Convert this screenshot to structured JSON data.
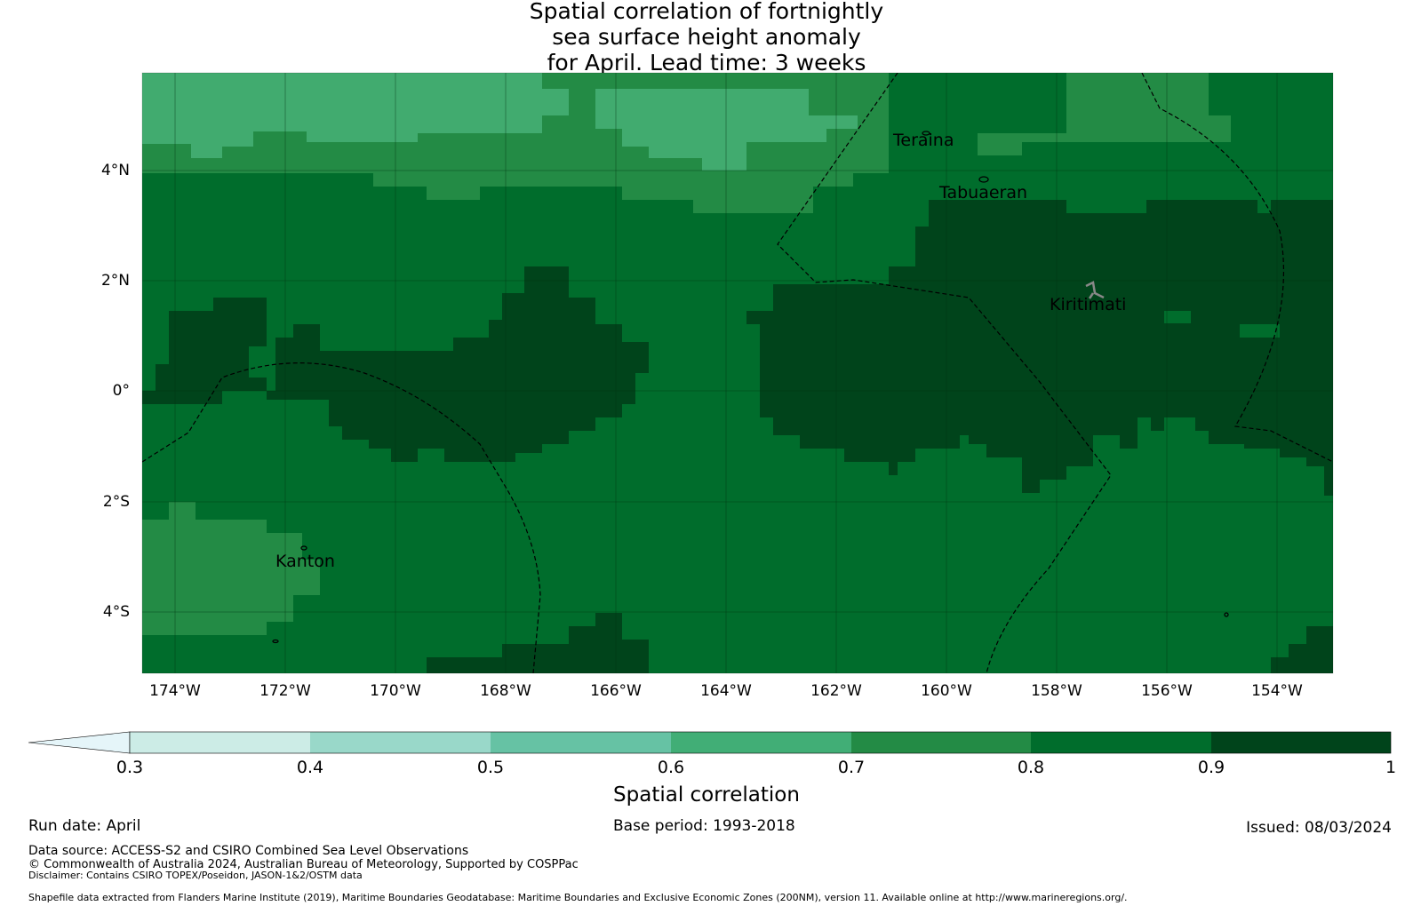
{
  "title_lines": [
    "Spatial correlation of fortnightly",
    "sea surface height anomaly",
    "for April. Lead time: 3 weeks"
  ],
  "map": {
    "lon_range": [
      -174.6,
      -153.0
    ],
    "lat_range": [
      -5.1,
      5.8
    ],
    "lon_ticks": [
      "174°W",
      "172°W",
      "170°W",
      "168°W",
      "166°W",
      "164°W",
      "162°W",
      "160°W",
      "158°W",
      "156°W",
      "154°W"
    ],
    "lat_ticks": [
      "4°N",
      "2°N",
      "0°",
      "2°S",
      "4°S"
    ],
    "places": [
      {
        "name": "Teraina",
        "lon": -160.4
      },
      {
        "name": "Tabuaeran",
        "lon": -159.3
      },
      {
        "name": "Kiritimati",
        "lon": -157.4
      },
      {
        "name": "Kanton",
        "lon": -171.7
      }
    ],
    "colors": {
      "0.5-0.6": "#5cbf9b",
      "0.6-0.7": "#41ab6f",
      "0.7-0.8": "#238b45",
      "0.8-0.9": "#006d2c",
      "0.9-1": "#00441b"
    }
  },
  "colorbar": {
    "ticks": [
      "0.3",
      "0.4",
      "0.5",
      "0.6",
      "0.7",
      "0.8",
      "0.9",
      "1"
    ],
    "colors": [
      "#e5f5f9",
      "#ccece6",
      "#99d8c9",
      "#66c2a4",
      "#41ae76",
      "#238b45",
      "#006d2c",
      "#00441b"
    ],
    "label": "Spatial correlation"
  },
  "footer": {
    "run_date": "Run date: April",
    "base_period": "Base period: 1993-2018",
    "issued": "Issued: 08/03/2024",
    "data_source": "Data source: ACCESS-S2 and CSIRO Combined Sea Level Observations",
    "copyright": "© Commonwealth of Australia 2024, Australian Bureau of Meteorology, Supported by COSPPac",
    "disclaimer": "Disclaimer: Contains CSIRO TOPEX/Poseidon, JASON-1&2/OSTM data",
    "shapefile": "Shapefile data extracted from Flanders Marine Institute (2019), Maritime Boundaries Geodatabase: Maritime Boundaries and Exclusive Economic Zones (200NM), version 11. Available online at http://www.marineregions.org/."
  }
}
